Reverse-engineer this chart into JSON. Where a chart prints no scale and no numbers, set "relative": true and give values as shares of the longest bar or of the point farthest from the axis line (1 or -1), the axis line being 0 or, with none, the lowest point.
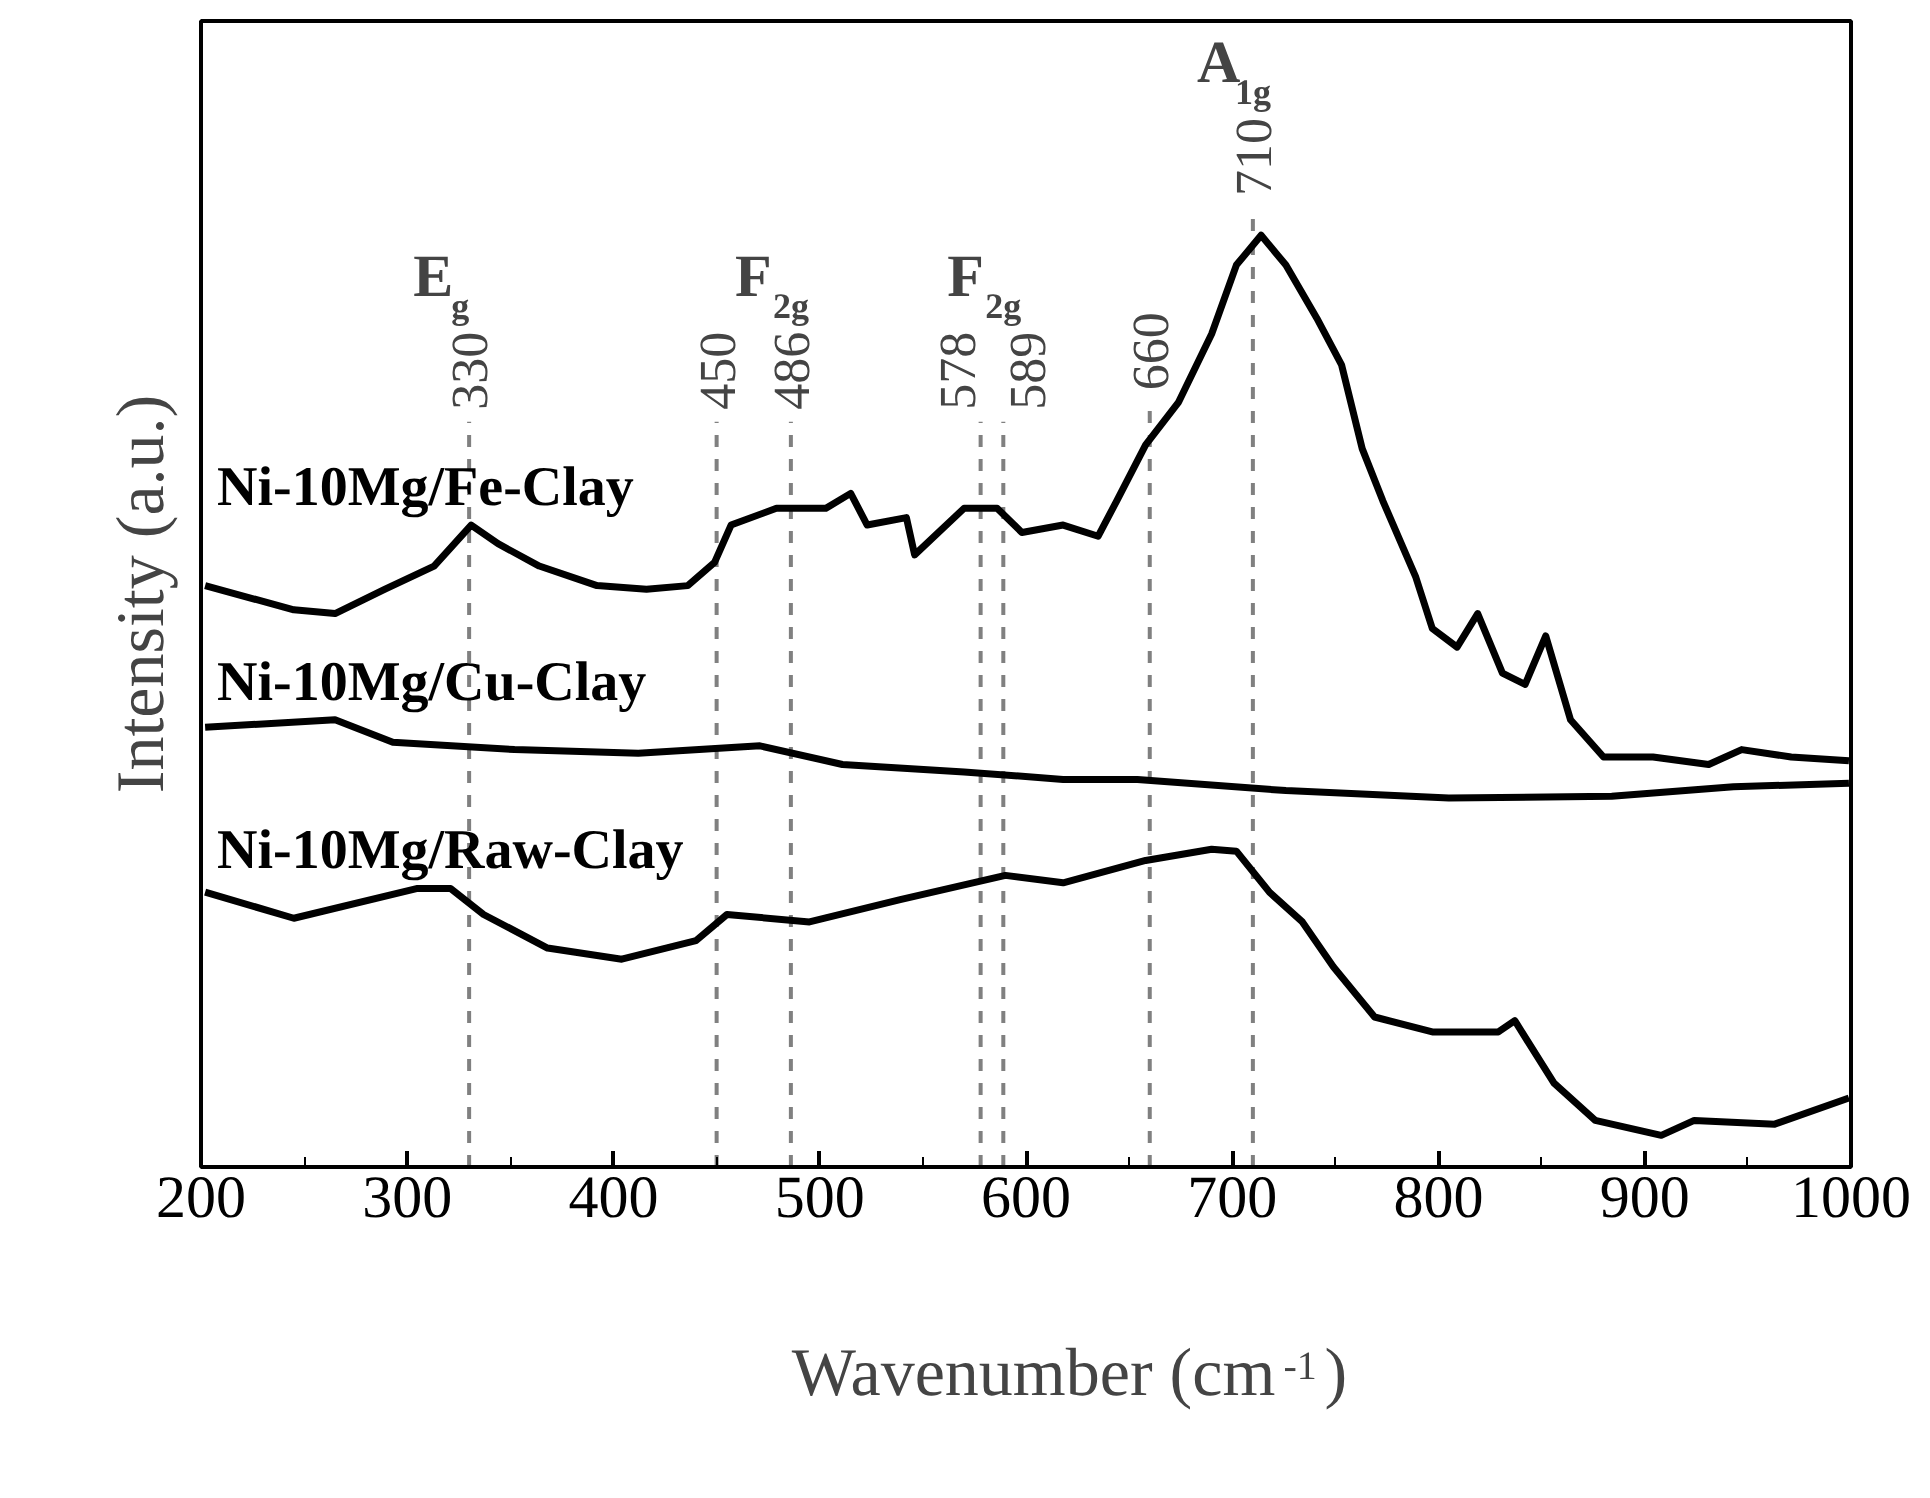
{
  "chart_data": {
    "type": "line",
    "relative": true,
    "xlabel": "Wavenumber (cm$^{-1}$)",
    "ylabel": "Intensity (a.u.)",
    "xlim": [
      200,
      1000
    ],
    "xticks": [
      200,
      300,
      400,
      500,
      600,
      700,
      800,
      900,
      1000
    ],
    "tick_labels": "x",
    "grid": false,
    "marker": "none",
    "line_style": "solid",
    "series": [
      {
        "name": "Ni-10Mg/Fe-Clay",
        "color": "#000000",
        "x": [
          202,
          245,
          265,
          289,
          313,
          331,
          344,
          364,
          392,
          416,
          436,
          449,
          457,
          479,
          503,
          515,
          523,
          542,
          546,
          570,
          586,
          598,
          618,
          635,
          644,
          658,
          674,
          690,
          702,
          714,
          726,
          741,
          753,
          763,
          773,
          789,
          797,
          809,
          819,
          831,
          842,
          852,
          864,
          880,
          904,
          931,
          947,
          971,
          999
        ],
        "values": [
          0.624,
          0.598,
          0.594,
          0.62,
          0.645,
          0.689,
          0.669,
          0.645,
          0.624,
          0.62,
          0.624,
          0.649,
          0.689,
          0.707,
          0.707,
          0.723,
          0.689,
          0.697,
          0.657,
          0.707,
          0.707,
          0.681,
          0.689,
          0.677,
          0.715,
          0.775,
          0.821,
          0.894,
          0.968,
          1.0,
          0.968,
          0.911,
          0.861,
          0.771,
          0.715,
          0.633,
          0.578,
          0.558,
          0.594,
          0.53,
          0.518,
          0.57,
          0.48,
          0.44,
          0.44,
          0.432,
          0.448,
          0.44,
          0.436
        ]
      },
      {
        "name": "Ni-10Mg/Cu-Clay",
        "color": "#000000",
        "x": [
          202,
          265,
          293,
          352,
          412,
          471,
          511,
          570,
          618,
          654,
          726,
          805,
          884,
          943,
          999
        ],
        "values": [
          0.472,
          0.48,
          0.456,
          0.448,
          0.444,
          0.452,
          0.432,
          0.424,
          0.416,
          0.416,
          0.404,
          0.396,
          0.398,
          0.408,
          0.412
        ]
      },
      {
        "name": "Ni-10Mg/Raw-Clay",
        "color": "#000000",
        "x": [
          202,
          245,
          305,
          321,
          337,
          368,
          404,
          440,
          455,
          495,
          539,
          590,
          618,
          658,
          690,
          702,
          718,
          734,
          749,
          769,
          797,
          829,
          837,
          856,
          876,
          908,
          924,
          963,
          999
        ],
        "values": [
          0.295,
          0.267,
          0.299,
          0.299,
          0.271,
          0.235,
          0.223,
          0.243,
          0.271,
          0.263,
          0.287,
          0.313,
          0.305,
          0.329,
          0.341,
          0.339,
          0.295,
          0.263,
          0.215,
          0.161,
          0.145,
          0.145,
          0.157,
          0.09,
          0.05,
          0.034,
          0.05,
          0.046,
          0.074
        ]
      }
    ],
    "ref_lines": [
      {
        "axis": "x",
        "value": 330,
        "label": "330",
        "color": "#808080",
        "line_style": "dashed"
      },
      {
        "axis": "x",
        "value": 450,
        "label": "450",
        "color": "#808080",
        "line_style": "dashed"
      },
      {
        "axis": "x",
        "value": 486,
        "label": "486",
        "color": "#808080",
        "line_style": "dashed"
      },
      {
        "axis": "x",
        "value": 578,
        "label": "578",
        "color": "#808080",
        "line_style": "dashed"
      },
      {
        "axis": "x",
        "value": 589,
        "label": "589",
        "color": "#808080",
        "line_style": "dashed"
      },
      {
        "axis": "x",
        "value": 660,
        "label": "660",
        "color": "#808080",
        "line_style": "dashed"
      },
      {
        "axis": "x",
        "value": 710,
        "label": "710",
        "color": "#808080",
        "line_style": "dashed"
      }
    ],
    "annotations": [
      "E$_{g}$",
      "F$_{2g}$",
      "F$_{2g}$",
      "A$_{1g}$"
    ]
  }
}
